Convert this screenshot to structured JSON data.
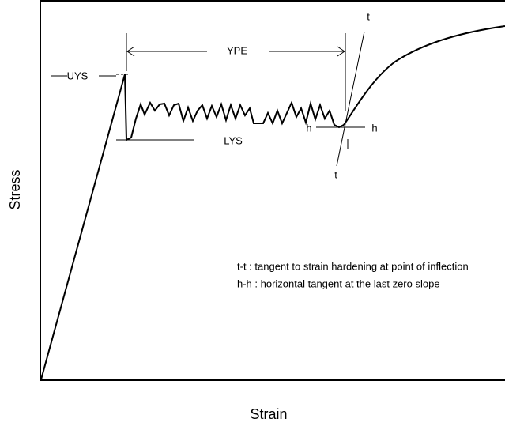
{
  "labels": {
    "uys": "UYS",
    "ype": "YPE",
    "lys": "LYS",
    "t_top": "t",
    "t_bottom": "t",
    "h_left": "h",
    "h_right": "h"
  },
  "axes": {
    "y_label": "Stress",
    "x_label": "Strain"
  },
  "notes": [
    "t-t : tangent to strain hardening at point of inflection",
    "h-h : horizontal tangent at the last zero slope"
  ]
}
